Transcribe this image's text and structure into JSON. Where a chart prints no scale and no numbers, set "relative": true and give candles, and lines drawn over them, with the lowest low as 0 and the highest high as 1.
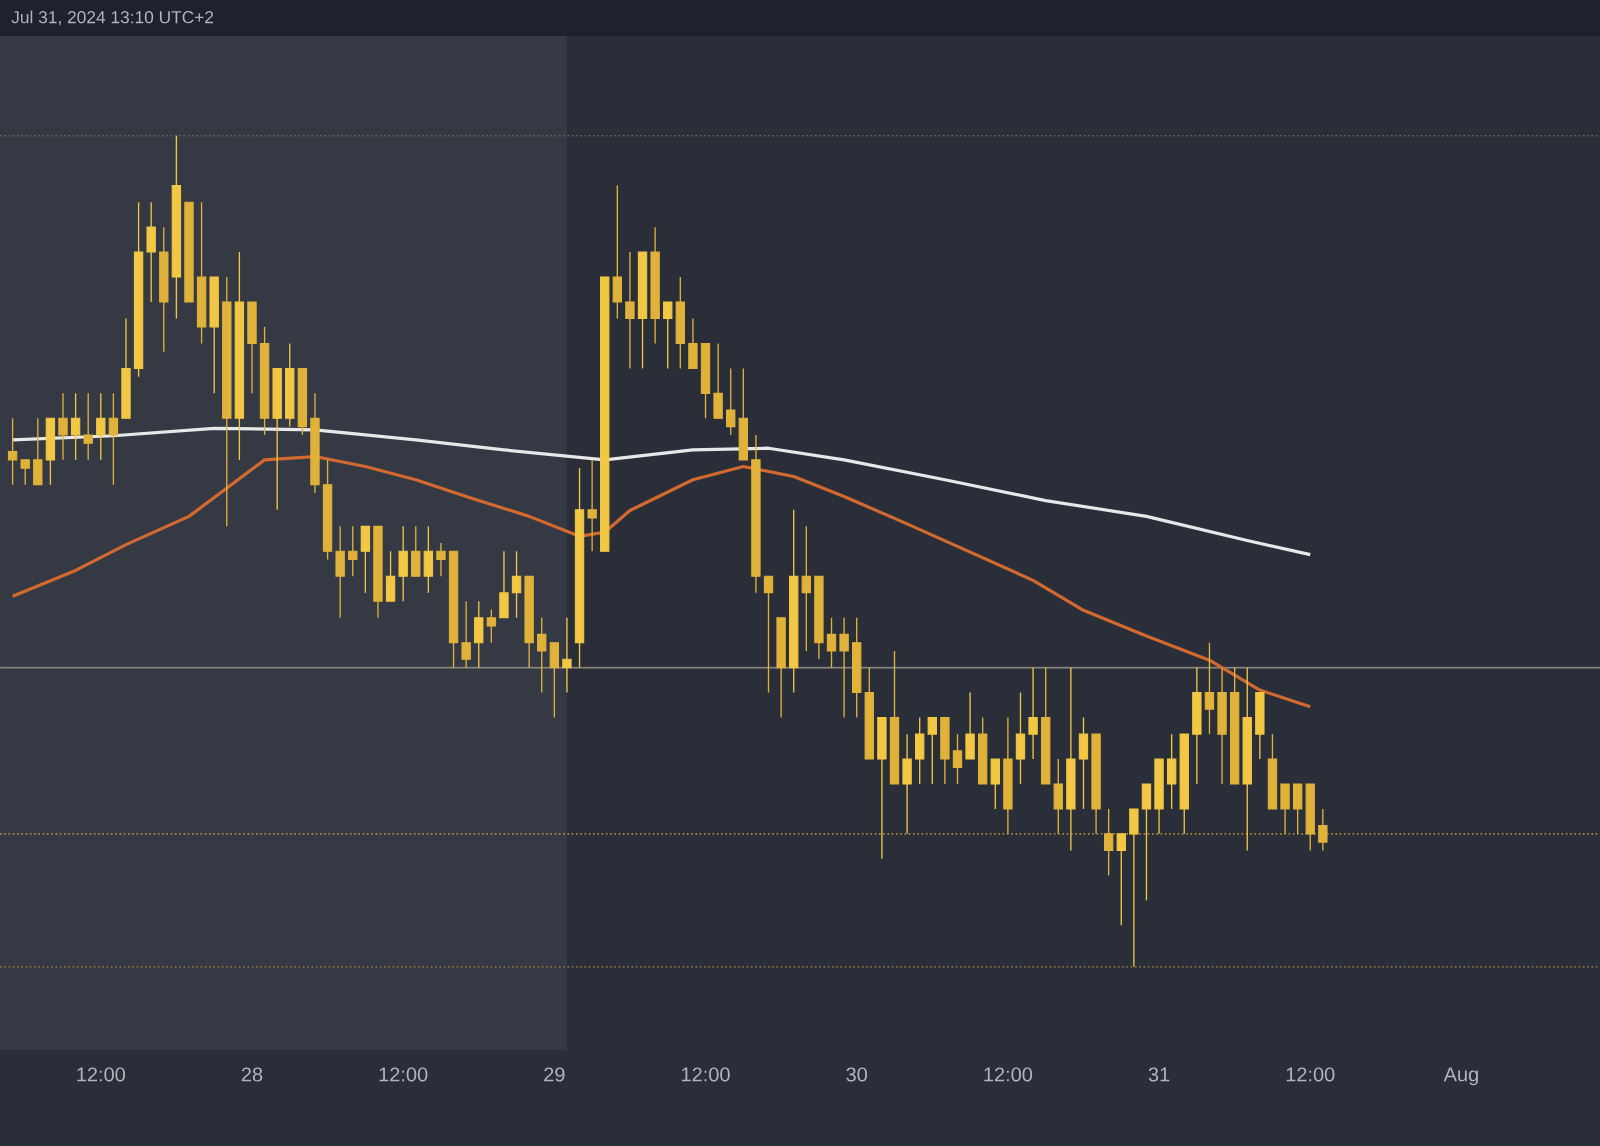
{
  "chart_data": {
    "type": "candlestick",
    "relative": true,
    "annotations": [
      "Jul 31, 2024 13:10 UTC+2"
    ],
    "xlim": [
      "2024-07-27T04:00",
      "2024-08-01T11:00"
    ],
    "xticks": [
      {
        "value": "2024-07-27T12:00",
        "label": "12:00"
      },
      {
        "value": "2024-07-28T00:00",
        "label": "28"
      },
      {
        "value": "2024-07-28T12:00",
        "label": "12:00"
      },
      {
        "value": "2024-07-29T00:00",
        "label": "29"
      },
      {
        "value": "2024-07-29T12:00",
        "label": "12:00"
      },
      {
        "value": "2024-07-30T00:00",
        "label": "30"
      },
      {
        "value": "2024-07-30T12:00",
        "label": "12:00"
      },
      {
        "value": "2024-07-31T00:00",
        "label": "31"
      },
      {
        "value": "2024-07-31T12:00",
        "label": "12:00"
      },
      {
        "value": "2024-08-01T00:00",
        "label": "Aug"
      }
    ],
    "bands": [
      {
        "axis": "x",
        "from": "2024-07-27T04:00",
        "to": "2024-07-29T01:00",
        "color": "#353944"
      }
    ],
    "ref_lines": [
      {
        "axis": "y",
        "value": 1.0,
        "color": "#6e6650",
        "line_style": "dotted"
      },
      {
        "axis": "y",
        "value": 0.36,
        "color": "#8c8580",
        "line_style": "solid"
      },
      {
        "axis": "y",
        "value": 0.16,
        "color": "#b08a3a",
        "line_style": "dotted"
      },
      {
        "axis": "y",
        "value": 0.0,
        "color": "#8a6e3a",
        "line_style": "dotted"
      }
    ],
    "series": [
      {
        "type": "line",
        "color": "#e8e8e8",
        "x": [
          "2024-07-27T05:00",
          "2024-07-27T13:00",
          "2024-07-27T21:00",
          "2024-07-28T05:00",
          "2024-07-28T13:00",
          "2024-07-28T20:00",
          "2024-07-29T04:00",
          "2024-07-29T11:00",
          "2024-07-29T17:00",
          "2024-07-29T23:00",
          "2024-07-30T07:00",
          "2024-07-30T15:00",
          "2024-07-30T23:00",
          "2024-07-31T07:00",
          "2024-07-31T12:00"
        ],
        "values": [
          0.634,
          0.639,
          0.648,
          0.646,
          0.634,
          0.622,
          0.61,
          0.622,
          0.624,
          0.61,
          0.586,
          0.561,
          0.542,
          0.513,
          0.496
        ]
      },
      {
        "type": "line",
        "color": "#d2692e",
        "x": [
          "2024-07-27T05:00",
          "2024-07-27T10:00",
          "2024-07-27T14:00",
          "2024-07-27T19:00",
          "2024-07-27T22:00",
          "2024-07-28T01:00",
          "2024-07-28T05:00",
          "2024-07-28T09:00",
          "2024-07-28T13:00",
          "2024-07-28T17:00",
          "2024-07-28T22:00",
          "2024-07-29T02:00",
          "2024-07-29T04:00",
          "2024-07-29T06:00",
          "2024-07-29T11:00",
          "2024-07-29T15:00",
          "2024-07-29T19:00",
          "2024-07-29T23:00",
          "2024-07-30T04:00",
          "2024-07-30T09:00",
          "2024-07-30T14:00",
          "2024-07-30T18:00",
          "2024-07-30T23:00",
          "2024-07-31T04:00",
          "2024-07-31T08:00",
          "2024-07-31T12:00"
        ],
        "values": [
          0.446,
          0.477,
          0.508,
          0.542,
          0.576,
          0.61,
          0.614,
          0.602,
          0.586,
          0.566,
          0.542,
          0.518,
          0.523,
          0.549,
          0.586,
          0.602,
          0.59,
          0.566,
          0.533,
          0.499,
          0.465,
          0.429,
          0.398,
          0.369,
          0.333,
          0.313
        ]
      },
      {
        "color": "#f2c744",
        "colors": [
          "#e0b23a",
          "#e0b23a",
          "#e0b23a",
          "#f2c744",
          "#e0b23a",
          "#f2c744",
          "#e0b23a",
          "#f2c744",
          "#e0b23a",
          "#f2c744",
          "#f2c744",
          "#f2c744",
          "#e0b23a",
          "#f2c744",
          "#e0b23a",
          "#e0b23a",
          "#f2c744",
          "#e0b23a",
          "#f2c744",
          "#e0b23a",
          "#e0b23a",
          "#f2c744",
          "#f2c744",
          "#e0b23a",
          "#e0b23a",
          "#e0b23a",
          "#e0b23a",
          "#e0b23a",
          "#f2c744",
          "#e0b23a",
          "#f2c744",
          "#f2c744",
          "#e0b23a",
          "#f2c744",
          "#e0b23a",
          "#e0b23a",
          "#e0b23a",
          "#f2c744",
          "#e0b23a",
          "#f2c744",
          "#f2c744",
          "#e0b23a",
          "#e0b23a",
          "#e0b23a",
          "#f2c744",
          "#f2c744",
          "#e0b23a",
          "#f2c744",
          "#e0b23a",
          "#e0b23a",
          "#f2c744",
          "#e0b23a",
          "#f2c744",
          "#e0b23a",
          "#e0b23a",
          "#e0b23a",
          "#e0b23a",
          "#e0b23a",
          "#e0b23a",
          "#e0b23a",
          "#e0b23a",
          "#e0b23a",
          "#f2c744",
          "#e0b23a",
          "#e0b23a",
          "#e0b23a",
          "#e0b23a",
          "#e0b23a",
          "#e0b23a",
          "#f2c744",
          "#e0b23a",
          "#f2c744",
          "#f2c744",
          "#f2c744",
          "#e0b23a",
          "#e0b23a",
          "#f2c744",
          "#e0b23a",
          "#f2c744",
          "#e0b23a",
          "#f2c744",
          "#f2c744",
          "#e0b23a",
          "#e0b23a",
          "#f2c744",
          "#f2c744",
          "#e0b23a",
          "#e0b23a",
          "#f2c744",
          "#f2c744",
          "#f2c744",
          "#f2c744",
          "#f2c744",
          "#f2c744",
          "#f2c744",
          "#e0b23a",
          "#e0b23a",
          "#e0b23a",
          "#f2c744",
          "#f2c744",
          "#e0b23a",
          "#e0b23a",
          "#e0b23a",
          "#e0b23a",
          "#e0b23a"
        ],
        "x": [
          "2024-07-27T05:00",
          "2024-07-27T06:00",
          "2024-07-27T07:00",
          "2024-07-27T08:00",
          "2024-07-27T09:00",
          "2024-07-27T10:00",
          "2024-07-27T11:00",
          "2024-07-27T12:00",
          "2024-07-27T13:00",
          "2024-07-27T14:00",
          "2024-07-27T15:00",
          "2024-07-27T16:00",
          "2024-07-27T17:00",
          "2024-07-27T18:00",
          "2024-07-27T19:00",
          "2024-07-27T20:00",
          "2024-07-27T21:00",
          "2024-07-27T22:00",
          "2024-07-27T23:00",
          "2024-07-28T00:00",
          "2024-07-28T01:00",
          "2024-07-28T02:00",
          "2024-07-28T03:00",
          "2024-07-28T04:00",
          "2024-07-28T05:00",
          "2024-07-28T06:00",
          "2024-07-28T07:00",
          "2024-07-28T08:00",
          "2024-07-28T09:00",
          "2024-07-28T10:00",
          "2024-07-28T11:00",
          "2024-07-28T12:00",
          "2024-07-28T13:00",
          "2024-07-28T14:00",
          "2024-07-28T15:00",
          "2024-07-28T16:00",
          "2024-07-28T17:00",
          "2024-07-28T18:00",
          "2024-07-28T19:00",
          "2024-07-28T20:00",
          "2024-07-28T21:00",
          "2024-07-28T22:00",
          "2024-07-28T23:00",
          "2024-07-29T00:00",
          "2024-07-29T01:00",
          "2024-07-29T02:00",
          "2024-07-29T03:00",
          "2024-07-29T04:00",
          "2024-07-29T05:00",
          "2024-07-29T06:00",
          "2024-07-29T07:00",
          "2024-07-29T08:00",
          "2024-07-29T09:00",
          "2024-07-29T10:00",
          "2024-07-29T11:00",
          "2024-07-29T12:00",
          "2024-07-29T13:00",
          "2024-07-29T14:00",
          "2024-07-29T15:00",
          "2024-07-29T16:00",
          "2024-07-29T17:00",
          "2024-07-29T18:00",
          "2024-07-29T19:00",
          "2024-07-29T20:00",
          "2024-07-29T21:00",
          "2024-07-29T22:00",
          "2024-07-29T23:00",
          "2024-07-30T00:00",
          "2024-07-30T01:00",
          "2024-07-30T02:00",
          "2024-07-30T03:00",
          "2024-07-30T04:00",
          "2024-07-30T05:00",
          "2024-07-30T06:00",
          "2024-07-30T07:00",
          "2024-07-30T08:00",
          "2024-07-30T09:00",
          "2024-07-30T10:00",
          "2024-07-30T11:00",
          "2024-07-30T12:00",
          "2024-07-30T13:00",
          "2024-07-30T14:00",
          "2024-07-30T15:00",
          "2024-07-30T16:00",
          "2024-07-30T17:00",
          "2024-07-30T18:00",
          "2024-07-30T19:00",
          "2024-07-30T20:00",
          "2024-07-30T21:00",
          "2024-07-30T22:00",
          "2024-07-30T23:00",
          "2024-07-31T00:00",
          "2024-07-31T01:00",
          "2024-07-31T02:00",
          "2024-07-31T03:00",
          "2024-07-31T04:00",
          "2024-07-31T05:00",
          "2024-07-31T06:00",
          "2024-07-31T07:00",
          "2024-07-31T08:00",
          "2024-07-31T09:00",
          "2024-07-31T10:00",
          "2024-07-31T11:00",
          "2024-07-31T12:00",
          "2024-07-31T13:00"
        ],
        "ohlc": [
          [
            0.62,
            0.66,
            0.58,
            0.61
          ],
          [
            0.61,
            0.61,
            0.58,
            0.6
          ],
          [
            0.61,
            0.66,
            0.58,
            0.58
          ],
          [
            0.61,
            0.66,
            0.58,
            0.66
          ],
          [
            0.66,
            0.69,
            0.61,
            0.64
          ],
          [
            0.64,
            0.69,
            0.61,
            0.66
          ],
          [
            0.64,
            0.69,
            0.61,
            0.63
          ],
          [
            0.64,
            0.69,
            0.61,
            0.66
          ],
          [
            0.66,
            0.69,
            0.58,
            0.64
          ],
          [
            0.66,
            0.78,
            0.66,
            0.72
          ],
          [
            0.72,
            0.92,
            0.71,
            0.86
          ],
          [
            0.86,
            0.92,
            0.8,
            0.89
          ],
          [
            0.86,
            0.89,
            0.74,
            0.8
          ],
          [
            0.83,
            1.0,
            0.78,
            0.94
          ],
          [
            0.92,
            0.92,
            0.8,
            0.8
          ],
          [
            0.83,
            0.92,
            0.75,
            0.77
          ],
          [
            0.77,
            0.83,
            0.69,
            0.83
          ],
          [
            0.8,
            0.83,
            0.53,
            0.66
          ],
          [
            0.66,
            0.86,
            0.61,
            0.8
          ],
          [
            0.8,
            0.8,
            0.69,
            0.75
          ],
          [
            0.75,
            0.77,
            0.64,
            0.66
          ],
          [
            0.66,
            0.72,
            0.55,
            0.72
          ],
          [
            0.66,
            0.75,
            0.65,
            0.72
          ],
          [
            0.72,
            0.72,
            0.64,
            0.65
          ],
          [
            0.66,
            0.69,
            0.57,
            0.58
          ],
          [
            0.58,
            0.61,
            0.49,
            0.5
          ],
          [
            0.5,
            0.53,
            0.42,
            0.47
          ],
          [
            0.5,
            0.53,
            0.47,
            0.49
          ],
          [
            0.5,
            0.53,
            0.45,
            0.53
          ],
          [
            0.53,
            0.53,
            0.42,
            0.44
          ],
          [
            0.44,
            0.5,
            0.44,
            0.47
          ],
          [
            0.47,
            0.53,
            0.44,
            0.5
          ],
          [
            0.5,
            0.53,
            0.47,
            0.47
          ],
          [
            0.47,
            0.53,
            0.45,
            0.5
          ],
          [
            0.5,
            0.51,
            0.47,
            0.49
          ],
          [
            0.5,
            0.5,
            0.36,
            0.39
          ],
          [
            0.39,
            0.44,
            0.36,
            0.37
          ],
          [
            0.39,
            0.44,
            0.36,
            0.42
          ],
          [
            0.42,
            0.43,
            0.39,
            0.41
          ],
          [
            0.42,
            0.5,
            0.42,
            0.45
          ],
          [
            0.45,
            0.5,
            0.42,
            0.47
          ],
          [
            0.47,
            0.47,
            0.36,
            0.39
          ],
          [
            0.4,
            0.42,
            0.33,
            0.38
          ],
          [
            0.39,
            0.39,
            0.3,
            0.36
          ],
          [
            0.36,
            0.42,
            0.33,
            0.37
          ],
          [
            0.39,
            0.6,
            0.36,
            0.55
          ],
          [
            0.55,
            0.61,
            0.5,
            0.54
          ],
          [
            0.5,
            0.83,
            0.5,
            0.83
          ],
          [
            0.83,
            0.94,
            0.78,
            0.8
          ],
          [
            0.8,
            0.86,
            0.72,
            0.78
          ],
          [
            0.78,
            0.86,
            0.72,
            0.86
          ],
          [
            0.86,
            0.89,
            0.75,
            0.78
          ],
          [
            0.78,
            0.8,
            0.72,
            0.8
          ],
          [
            0.8,
            0.83,
            0.72,
            0.75
          ],
          [
            0.75,
            0.78,
            0.72,
            0.72
          ],
          [
            0.75,
            0.75,
            0.66,
            0.69
          ],
          [
            0.69,
            0.75,
            0.66,
            0.66
          ],
          [
            0.67,
            0.72,
            0.64,
            0.65
          ],
          [
            0.66,
            0.72,
            0.61,
            0.61
          ],
          [
            0.61,
            0.64,
            0.45,
            0.47
          ],
          [
            0.47,
            0.47,
            0.33,
            0.45
          ],
          [
            0.42,
            0.42,
            0.3,
            0.36
          ],
          [
            0.36,
            0.55,
            0.33,
            0.47
          ],
          [
            0.47,
            0.53,
            0.38,
            0.45
          ],
          [
            0.47,
            0.47,
            0.37,
            0.39
          ],
          [
            0.4,
            0.42,
            0.36,
            0.38
          ],
          [
            0.4,
            0.42,
            0.3,
            0.38
          ],
          [
            0.39,
            0.42,
            0.3,
            0.33
          ],
          [
            0.33,
            0.36,
            0.25,
            0.25
          ],
          [
            0.25,
            0.3,
            0.13,
            0.3
          ],
          [
            0.3,
            0.38,
            0.22,
            0.22
          ],
          [
            0.22,
            0.28,
            0.16,
            0.25
          ],
          [
            0.25,
            0.3,
            0.22,
            0.28
          ],
          [
            0.28,
            0.3,
            0.22,
            0.3
          ],
          [
            0.3,
            0.3,
            0.22,
            0.25
          ],
          [
            0.26,
            0.28,
            0.22,
            0.24
          ],
          [
            0.25,
            0.33,
            0.25,
            0.28
          ],
          [
            0.28,
            0.3,
            0.22,
            0.22
          ],
          [
            0.22,
            0.25,
            0.19,
            0.25
          ],
          [
            0.25,
            0.3,
            0.16,
            0.19
          ],
          [
            0.25,
            0.33,
            0.22,
            0.28
          ],
          [
            0.28,
            0.36,
            0.25,
            0.3
          ],
          [
            0.3,
            0.36,
            0.22,
            0.22
          ],
          [
            0.22,
            0.25,
            0.16,
            0.19
          ],
          [
            0.19,
            0.36,
            0.14,
            0.25
          ],
          [
            0.25,
            0.3,
            0.19,
            0.28
          ],
          [
            0.28,
            0.28,
            0.16,
            0.19
          ],
          [
            0.16,
            0.19,
            0.11,
            0.14
          ],
          [
            0.14,
            0.16,
            0.05,
            0.16
          ],
          [
            0.16,
            0.19,
            0.0,
            0.19
          ],
          [
            0.19,
            0.22,
            0.08,
            0.22
          ],
          [
            0.19,
            0.25,
            0.16,
            0.25
          ],
          [
            0.22,
            0.28,
            0.19,
            0.25
          ],
          [
            0.19,
            0.28,
            0.16,
            0.28
          ],
          [
            0.28,
            0.36,
            0.22,
            0.33
          ],
          [
            0.33,
            0.39,
            0.28,
            0.31
          ],
          [
            0.33,
            0.36,
            0.22,
            0.28
          ],
          [
            0.33,
            0.36,
            0.22,
            0.22
          ],
          [
            0.22,
            0.36,
            0.14,
            0.3
          ],
          [
            0.28,
            0.33,
            0.25,
            0.33
          ],
          [
            0.25,
            0.28,
            0.19,
            0.19
          ],
          [
            0.22,
            0.22,
            0.16,
            0.19
          ],
          [
            0.22,
            0.22,
            0.16,
            0.19
          ],
          [
            0.22,
            0.22,
            0.14,
            0.16
          ],
          [
            0.17,
            0.19,
            0.14,
            0.15
          ]
        ]
      }
    ]
  }
}
